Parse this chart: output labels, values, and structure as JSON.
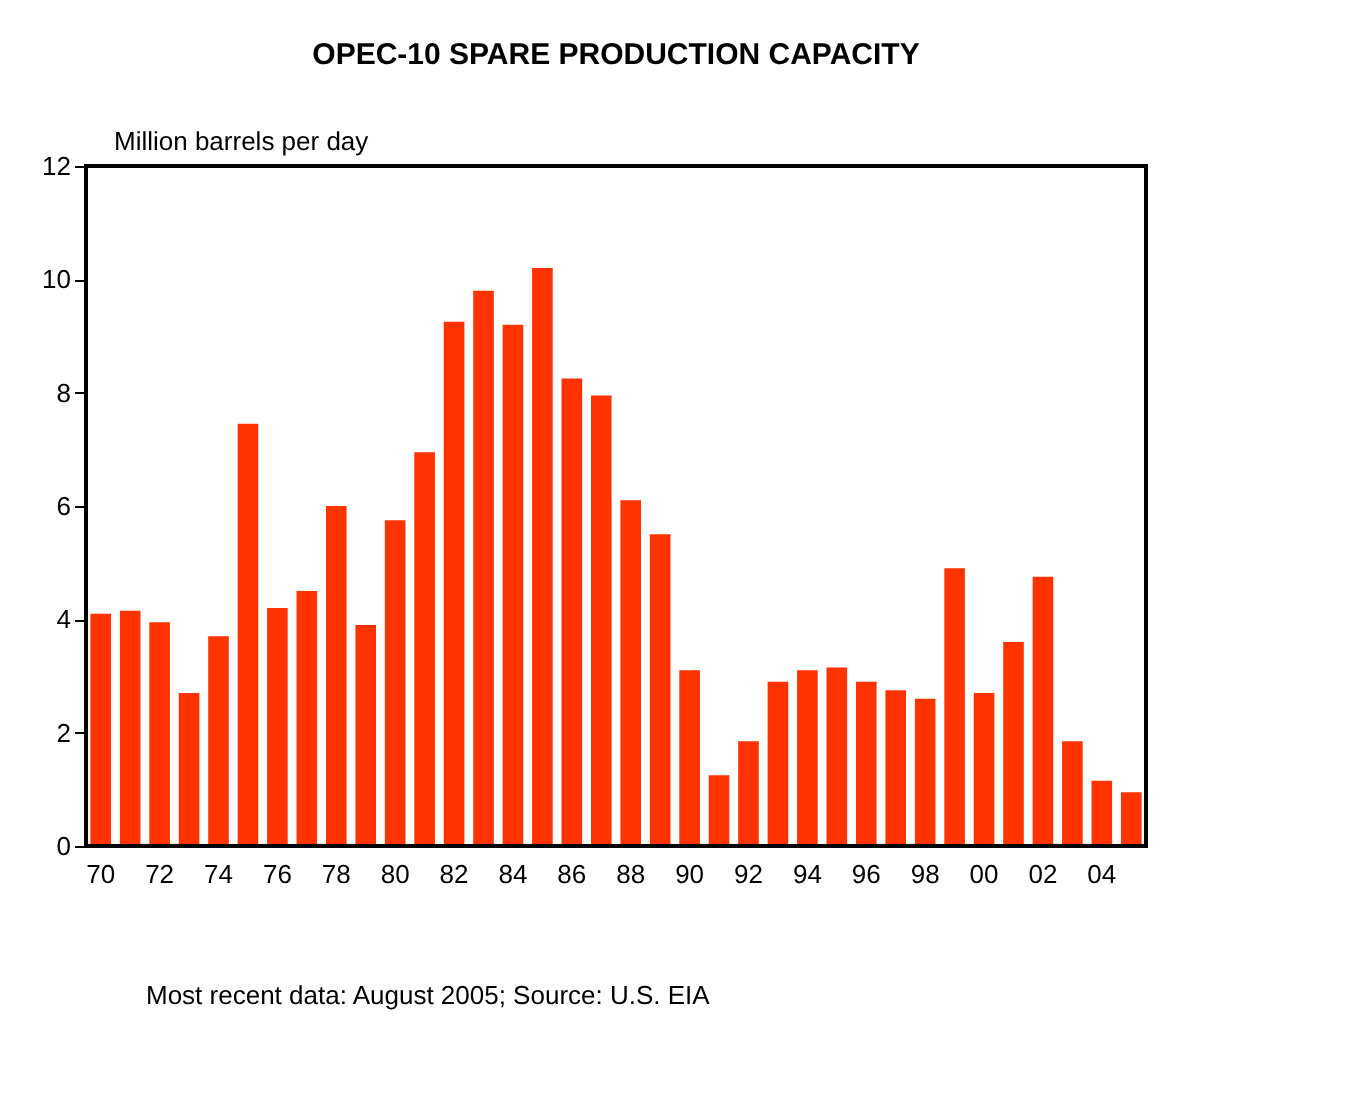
{
  "chart_data": {
    "type": "bar",
    "title": "OPEC-10 SPARE PRODUCTION CAPACITY",
    "ylabel": "Million barrels per day",
    "categories": [
      "70",
      null,
      "72",
      null,
      "74",
      null,
      "76",
      null,
      "78",
      null,
      "80",
      null,
      "82",
      null,
      "84",
      null,
      "86",
      null,
      "88",
      null,
      "90",
      null,
      "92",
      null,
      "94",
      null,
      "96",
      null,
      "98",
      null,
      "00",
      null,
      "02",
      null,
      "04",
      null
    ],
    "values": [
      4.1,
      4.15,
      3.95,
      2.7,
      3.7,
      7.45,
      4.2,
      4.5,
      6.0,
      3.9,
      5.75,
      6.95,
      9.25,
      9.8,
      9.2,
      10.2,
      8.25,
      7.95,
      6.1,
      5.5,
      3.1,
      1.25,
      1.85,
      2.9,
      3.1,
      3.15,
      2.9,
      2.75,
      2.6,
      4.9,
      2.7,
      3.6,
      4.75,
      1.85,
      1.15,
      0.95
    ],
    "color": "#ff3300",
    "ylim": [
      0,
      12
    ],
    "yticks": [
      0,
      2,
      4,
      6,
      8,
      10,
      12
    ],
    "grid": false,
    "annotations": [
      "Most recent data: August 2005; Source: U.S. EIA"
    ]
  }
}
